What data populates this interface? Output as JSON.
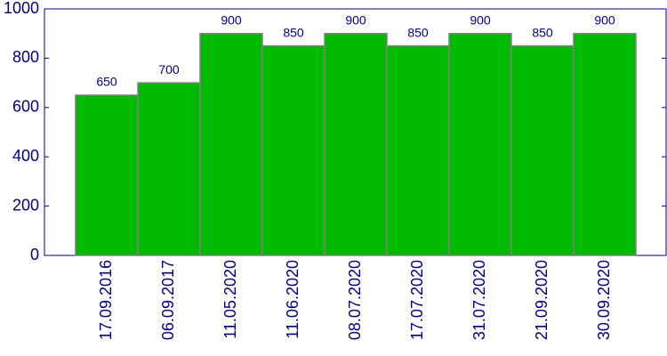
{
  "chart_data": {
    "type": "bar",
    "categories": [
      "17.09.2016",
      "06.09.2017",
      "11.05.2020",
      "11.06.2020",
      "08.07.2020",
      "17.07.2020",
      "31.07.2020",
      "21.09.2020",
      "30.09.2020"
    ],
    "values": [
      650,
      700,
      900,
      850,
      900,
      850,
      900,
      850,
      900
    ],
    "color": "#00bb00",
    "ylim": [
      0,
      1000
    ],
    "yticks": [
      0,
      200,
      400,
      600,
      800,
      1000
    ],
    "grid": false
  }
}
